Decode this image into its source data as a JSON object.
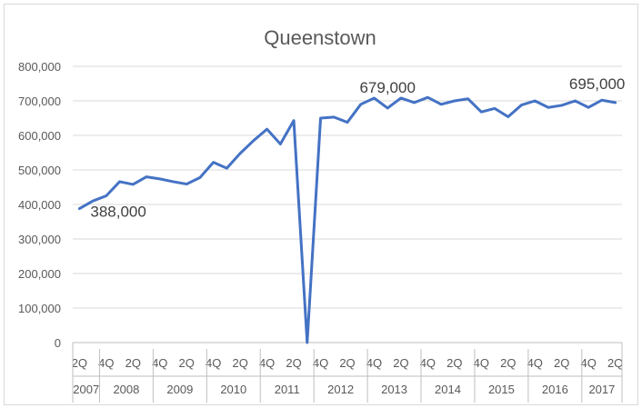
{
  "chart_data": {
    "type": "line",
    "title": "Queenstown",
    "xlabel": "",
    "ylabel": "",
    "ylim": [
      0,
      800000
    ],
    "yticks": [
      "0",
      "100,000",
      "200,000",
      "300,000",
      "400,000",
      "500,000",
      "600,000",
      "700,000",
      "800,000"
    ],
    "grid": true,
    "legend": "none",
    "years": [
      "2007",
      "2008",
      "2009",
      "2010",
      "2011",
      "2012",
      "2013",
      "2014",
      "2015",
      "2016",
      "2017"
    ],
    "quarter_labels": [
      "2Q",
      "4Q",
      "2Q",
      "4Q",
      "2Q",
      "4Q",
      "2Q",
      "4Q",
      "2Q",
      "4Q",
      "2Q",
      "4Q",
      "2Q",
      "4Q",
      "2Q",
      "4Q",
      "2Q",
      "4Q",
      "2Q",
      "4Q",
      "2Q"
    ],
    "x": [
      "2007 2Q",
      "2007 3Q",
      "2007 4Q",
      "2008 1Q",
      "2008 2Q",
      "2008 3Q",
      "2008 4Q",
      "2009 1Q",
      "2009 2Q",
      "2009 3Q",
      "2009 4Q",
      "2010 1Q",
      "2010 2Q",
      "2010 3Q",
      "2010 4Q",
      "2011 1Q",
      "2011 2Q",
      "2011 3Q",
      "2011 4Q",
      "2012 1Q",
      "2012 2Q",
      "2012 3Q",
      "2012 4Q",
      "2013 1Q",
      "2013 2Q",
      "2013 3Q",
      "2013 4Q",
      "2014 1Q",
      "2014 2Q",
      "2014 3Q",
      "2014 4Q",
      "2015 1Q",
      "2015 2Q",
      "2015 3Q",
      "2015 4Q",
      "2016 1Q",
      "2016 2Q",
      "2016 3Q",
      "2016 4Q",
      "2017 1Q",
      "2017 2Q"
    ],
    "series": [
      {
        "color": "#4472C4",
        "values": [
          388000,
          410000,
          425000,
          466000,
          458000,
          480000,
          474000,
          466000,
          459000,
          478000,
          522000,
          505000,
          548000,
          585000,
          618000,
          575000,
          643000,
          0,
          650000,
          653000,
          638000,
          690000,
          708000,
          679000,
          708000,
          695000,
          710000,
          690000,
          700000,
          706000,
          668000,
          678000,
          654000,
          688000,
          700000,
          681000,
          687000,
          700000,
          681000,
          702000,
          695000
        ]
      }
    ],
    "annotations": [
      {
        "index": 0,
        "text": "388,000"
      },
      {
        "index": 23,
        "text": "679,000"
      },
      {
        "index": 40,
        "text": "695,000"
      }
    ]
  }
}
